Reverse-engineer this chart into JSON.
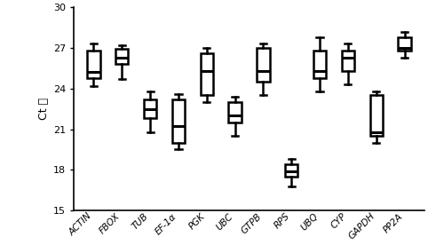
{
  "categories": [
    "ACTIN",
    "FBOX",
    "TUB",
    "EF-1α",
    "PGK",
    "UBC",
    "GTPB",
    "RPS",
    "UBQ",
    "CYP",
    "GAPDH",
    "PP2A"
  ],
  "boxes": [
    {
      "whislo": 24.2,
      "q1": 24.8,
      "med": 25.2,
      "q3": 26.8,
      "whishi": 27.3
    },
    {
      "whislo": 24.7,
      "q1": 25.8,
      "med": 26.3,
      "q3": 26.9,
      "whishi": 27.2
    },
    {
      "whislo": 20.8,
      "q1": 21.8,
      "med": 22.5,
      "q3": 23.2,
      "whishi": 23.8
    },
    {
      "whislo": 19.5,
      "q1": 20.0,
      "med": 21.2,
      "q3": 23.2,
      "whishi": 23.6
    },
    {
      "whislo": 23.0,
      "q1": 23.5,
      "med": 25.3,
      "q3": 26.6,
      "whishi": 27.0
    },
    {
      "whislo": 20.5,
      "q1": 21.5,
      "med": 22.0,
      "q3": 23.0,
      "whishi": 23.4
    },
    {
      "whislo": 23.5,
      "q1": 24.5,
      "med": 25.3,
      "q3": 27.0,
      "whishi": 27.3
    },
    {
      "whislo": 16.8,
      "q1": 17.5,
      "med": 17.9,
      "q3": 18.4,
      "whishi": 18.8
    },
    {
      "whislo": 23.8,
      "q1": 24.8,
      "med": 25.3,
      "q3": 26.8,
      "whishi": 27.8
    },
    {
      "whislo": 24.3,
      "q1": 25.3,
      "med": 26.3,
      "q3": 26.8,
      "whishi": 27.3
    },
    {
      "whislo": 20.0,
      "q1": 20.5,
      "med": 20.8,
      "q3": 23.5,
      "whishi": 23.8
    },
    {
      "whislo": 26.3,
      "q1": 26.8,
      "med": 27.0,
      "q3": 27.8,
      "whishi": 28.2
    }
  ],
  "ylabel": "Ct 値",
  "ylim": [
    15,
    30
  ],
  "yticks": [
    15,
    18,
    21,
    24,
    27,
    30
  ],
  "background_color": "#ffffff",
  "box_color": "#ffffff",
  "line_color": "#000000",
  "linewidth": 1.8,
  "median_linewidth": 2.2,
  "box_width": 0.45
}
